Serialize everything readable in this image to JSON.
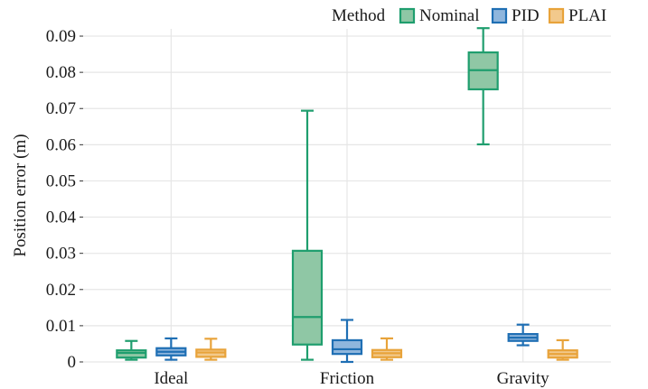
{
  "chart_data": {
    "type": "box",
    "title": "",
    "xlabel": "",
    "ylabel": "Position error (m)",
    "ylim": [
      0,
      0.092
    ],
    "yticks": [
      0,
      0.01,
      0.02,
      0.03,
      0.04,
      0.05,
      0.06,
      0.07,
      0.08,
      0.09
    ],
    "ytick_labels": [
      "0",
      "0.01",
      "0.02",
      "0.03",
      "0.04",
      "0.05",
      "0.06",
      "0.07",
      "0.08",
      "0.09"
    ],
    "grid": true,
    "categories": [
      "Ideal",
      "Friction",
      "Gravity"
    ],
    "legend": {
      "title": "Method",
      "placement": "top-right"
    },
    "series": [
      {
        "name": "Nominal",
        "color": "#1f9e6e",
        "fill": "#8fc7a5",
        "boxes": [
          {
            "category": "Ideal",
            "whisker_low": 0.0006,
            "q1": 0.0012,
            "median": 0.0025,
            "q3": 0.0032,
            "whisker_high": 0.0058
          },
          {
            "category": "Friction",
            "whisker_low": 0.0006,
            "q1": 0.0048,
            "median": 0.0124,
            "q3": 0.0307,
            "whisker_high": 0.0694
          },
          {
            "category": "Gravity",
            "whisker_low": 0.0601,
            "q1": 0.0753,
            "median": 0.0806,
            "q3": 0.0855,
            "whisker_high": 0.0922
          }
        ]
      },
      {
        "name": "PID",
        "color": "#1f6fb4",
        "fill": "#8fb6dd",
        "boxes": [
          {
            "category": "Ideal",
            "whisker_low": 0.0006,
            "q1": 0.0018,
            "median": 0.0028,
            "q3": 0.0038,
            "whisker_high": 0.0065
          },
          {
            "category": "Friction",
            "whisker_low": 0.0,
            "q1": 0.0022,
            "median": 0.0035,
            "q3": 0.006,
            "whisker_high": 0.0116
          },
          {
            "category": "Gravity",
            "whisker_low": 0.0046,
            "q1": 0.0058,
            "median": 0.0067,
            "q3": 0.0077,
            "whisker_high": 0.0103
          }
        ]
      },
      {
        "name": "PLAI",
        "color": "#e8a33a",
        "fill": "#f2c98c",
        "boxes": [
          {
            "category": "Ideal",
            "whisker_low": 0.0006,
            "q1": 0.0014,
            "median": 0.0026,
            "q3": 0.0034,
            "whisker_high": 0.0064
          },
          {
            "category": "Friction",
            "whisker_low": 0.0006,
            "q1": 0.0013,
            "median": 0.0024,
            "q3": 0.0033,
            "whisker_high": 0.0065
          },
          {
            "category": "Gravity",
            "whisker_low": 0.0006,
            "q1": 0.0012,
            "median": 0.0022,
            "q3": 0.0032,
            "whisker_high": 0.006
          }
        ]
      }
    ]
  }
}
